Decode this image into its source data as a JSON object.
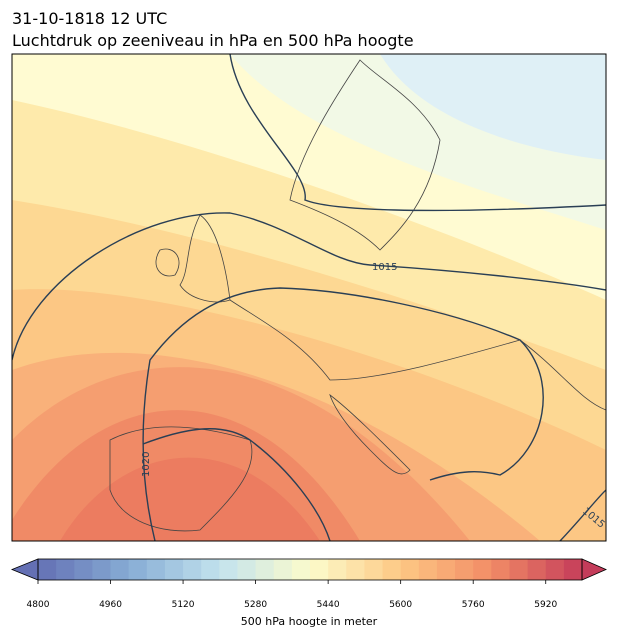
{
  "title": "31-10-1818 12 UTC",
  "subtitle": "Luchtdruk op zeeniveau in hPa en 500 hPa hoogte",
  "contour_labels": [
    "1015",
    "1020",
    "1015"
  ],
  "colorbar": {
    "lim": [
      4800,
      6000
    ],
    "step": 40,
    "ticks": [
      4800,
      4960,
      5120,
      5280,
      5440,
      5600,
      5760,
      5920
    ],
    "label": "500 hPa hoogte in meter",
    "colors": [
      "#6470b4",
      "#86acd4",
      "#c2e2ee",
      "#fcfccc",
      "#fdc884",
      "#f28c66",
      "#c43c5a"
    ]
  }
}
